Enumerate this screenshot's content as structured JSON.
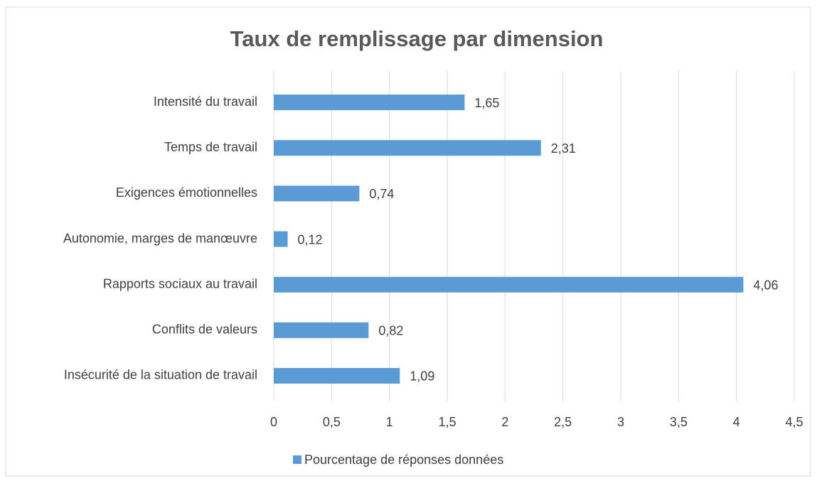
{
  "chart_data": {
    "type": "bar",
    "orientation": "horizontal",
    "title": "Taux de remplissage par dimension",
    "categories": [
      "Intensité du travail",
      "Temps de travail",
      "Exigences émotionnelles",
      "Autonomie, marges de manœuvre",
      "Rapports sociaux au travail",
      "Conflits de valeurs",
      "Insécurité de la situation de travail"
    ],
    "series": [
      {
        "name": "Pourcentage de réponses données",
        "color": "#5b9bd5",
        "values": [
          1.65,
          2.31,
          0.74,
          0.12,
          4.06,
          0.82,
          1.09
        ],
        "value_labels": [
          "1,65",
          "2,31",
          "0,74",
          "0,12",
          "4,06",
          "0,82",
          "1,09"
        ]
      }
    ],
    "xlim": [
      0,
      4.5
    ],
    "xticks": [
      0,
      {
        "value": 0.5,
        "label": "0,5"
      },
      1,
      {
        "value": 1.5,
        "label": "1,5"
      },
      2,
      {
        "value": 2.5,
        "label": "2,5"
      },
      3,
      {
        "value": 3.5,
        "label": "3,5"
      },
      4,
      {
        "value": 4.5,
        "label": "4,5"
      }
    ],
    "grid": true,
    "legend": "bottom"
  }
}
